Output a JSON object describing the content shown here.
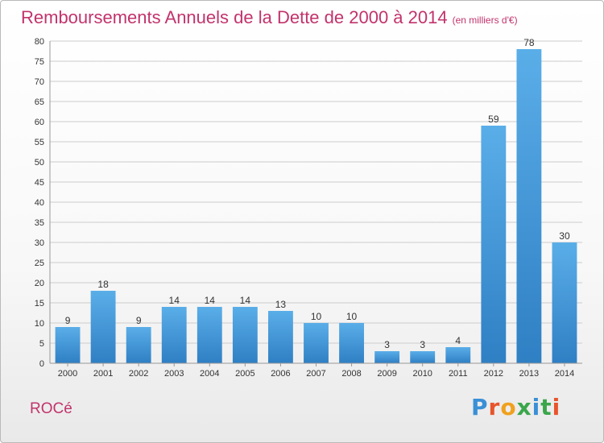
{
  "header": {
    "title": "Remboursements Annuels de la Dette de 2000 à 2014",
    "unit": "(en milliers d'€)"
  },
  "footer": {
    "commune": "ROCé",
    "logo_text": "Proxiti",
    "logo_colors": [
      "#3a8fd6",
      "#e8542b",
      "#f0a11e",
      "#3aa64b",
      "#3a8fd6",
      "#3aa64b",
      "#e8542b"
    ]
  },
  "colors": {
    "accent": "#c2336c",
    "bar_light": "#5aaee8",
    "bar_dark": "#2f7fc4",
    "grid": "#cccccc"
  },
  "chart_data": {
    "type": "bar",
    "title": "Remboursements Annuels de la Dette de 2000 à 2014",
    "xlabel": "",
    "ylabel": "",
    "categories": [
      "2000",
      "2001",
      "2002",
      "2003",
      "2004",
      "2005",
      "2006",
      "2007",
      "2008",
      "2009",
      "2010",
      "2011",
      "2012",
      "2013",
      "2014"
    ],
    "values": [
      9,
      18,
      9,
      14,
      14,
      14,
      13,
      10,
      10,
      3,
      3,
      4,
      59,
      78,
      30
    ],
    "ylim": [
      0,
      80
    ],
    "yticks": [
      0,
      5,
      10,
      15,
      20,
      25,
      30,
      35,
      40,
      45,
      50,
      55,
      60,
      65,
      70,
      75,
      80
    ],
    "grid": true,
    "data_labels": true
  }
}
